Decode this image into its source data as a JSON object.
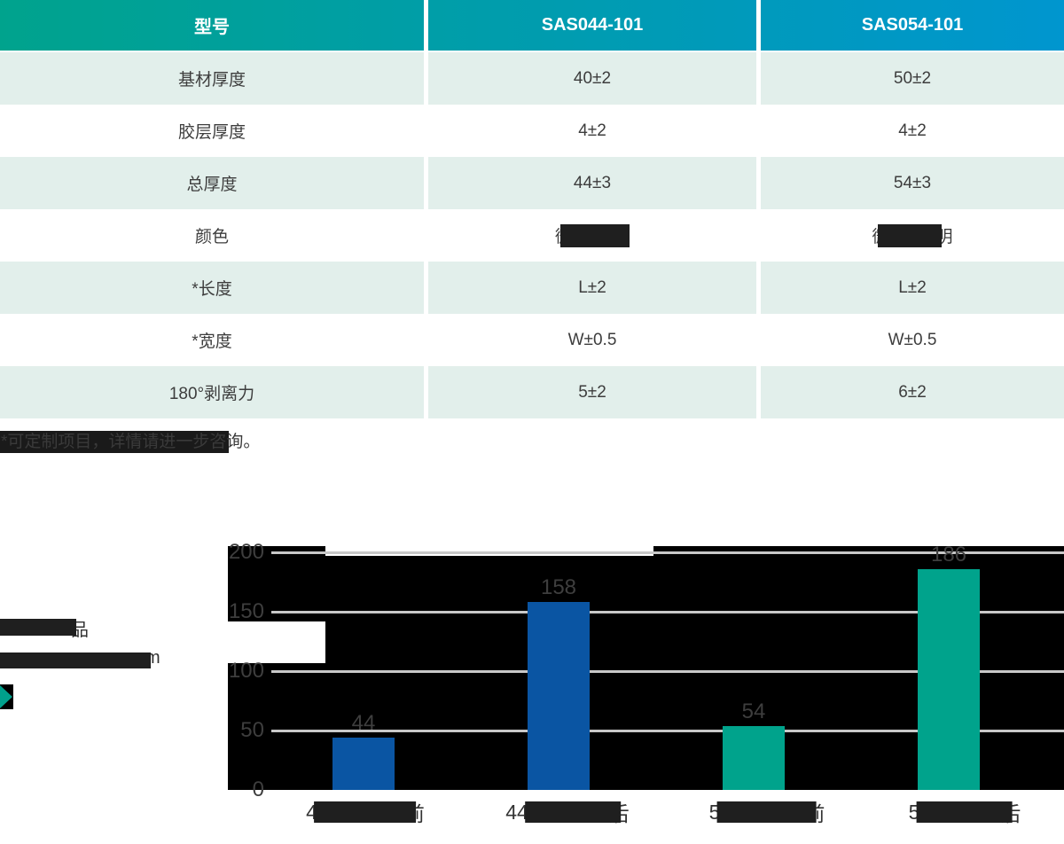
{
  "colors": {
    "header_gradient_left": "#00a38d",
    "header_gradient_right": "#0096cf",
    "row_alt_bg": "#e2efeb",
    "row_bg": "#ffffff",
    "table_text": "#3d3d3d",
    "header_text": "#ffffff",
    "bar_blue": "#0a55a3",
    "bar_teal": "#00a38c",
    "gridline": "#c8c8c8",
    "chart_block": "#000000",
    "redaction": "#1f1f1f",
    "chart_text": "#3e3e3e",
    "accent": "#00a08c"
  },
  "table": {
    "header": {
      "col_model": "型号",
      "col_a": "SAS044-101",
      "col_b": "SAS054-101"
    },
    "rows": [
      {
        "label": "基材厚度",
        "a": "40±2",
        "b": "50±2"
      },
      {
        "label": "胶层厚度",
        "a": "4±2",
        "b": "4±2"
      },
      {
        "label": "总厚度",
        "a": "44±3",
        "b": "54±3"
      },
      {
        "label": "颜色",
        "a_visible": "微",
        "b_visible_first": "微",
        "b_visible_last": "明"
      },
      {
        "label": "*长度",
        "a": "L±2",
        "b": "L±2"
      },
      {
        "label": "*宽度",
        "a": "W±0.5",
        "b": "W±0.5"
      },
      {
        "label": "180°剥离力",
        "a": "5±2",
        "b": "6±2"
      }
    ]
  },
  "footnote": {
    "text": "*可定制项目，详情请进一步咨询。"
  },
  "side_annotations": {
    "line1_visible_char": "品",
    "line2_visible_char": "m"
  },
  "chart_data": {
    "type": "bar",
    "title": "",
    "categories_visible": [
      {
        "prefix": "4",
        "suffix": "前"
      },
      {
        "prefix": "44",
        "suffix": "后"
      },
      {
        "prefix": "5",
        "suffix": "前"
      },
      {
        "prefix": "5",
        "suffix": "后"
      }
    ],
    "values": [
      44,
      158,
      54,
      186
    ],
    "value_labels": [
      "44",
      "158",
      "54",
      "186"
    ],
    "bar_colors": [
      "#0a55a3",
      "#0a55a3",
      "#00a38c",
      "#00a38c"
    ],
    "yticks": [
      0,
      50,
      100,
      150,
      200
    ],
    "ylim": [
      0,
      200
    ],
    "grid": true,
    "legend": null
  }
}
